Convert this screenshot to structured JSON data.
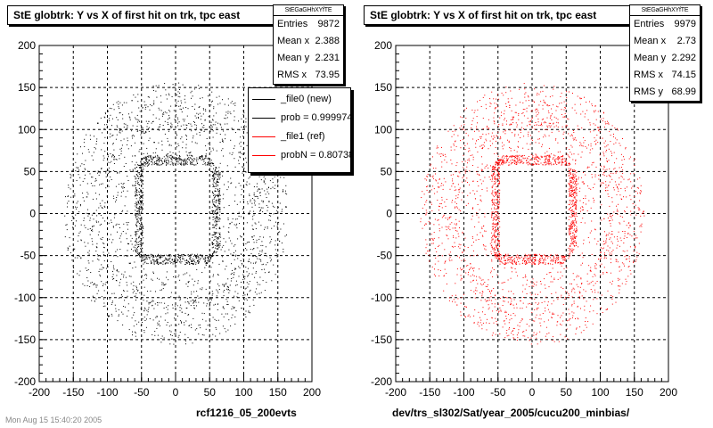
{
  "footer_note": "Mon Aug 15 15:40:20 2005",
  "chart_data": [
    {
      "type": "scatter",
      "title": "StE globtrk: Y vs X of first hit on trk, tpc east",
      "xlabel": "rcf1216_05_200evts",
      "ylabel": "",
      "xlim": [
        -200,
        200
      ],
      "ylim": [
        -200,
        200
      ],
      "xticks": [
        -200,
        -150,
        -100,
        -50,
        0,
        50,
        100,
        150,
        200
      ],
      "yticks": [
        -200,
        -150,
        -100,
        -50,
        0,
        50,
        100,
        150,
        200
      ],
      "grid": true,
      "marker_color": "#000000",
      "stats": {
        "header": "StEGaGHhXYfTE",
        "rows": [
          {
            "label": "Entries",
            "value": "9872"
          },
          {
            "label": "Mean x",
            "value": "2.388"
          },
          {
            "label": "Mean y",
            "value": "2.231"
          },
          {
            "label": "RMS x",
            "value": "73.95"
          }
        ]
      },
      "legend": {
        "placement": "top-right",
        "entries": [
          {
            "label": "_file0 (new)",
            "color": "#000000"
          },
          {
            "label": "prob = 0.999974",
            "color": "#000000"
          },
          {
            "label": "_file1 (ref)",
            "color": "#ff0000"
          },
          {
            "label": "probN = 0.80738",
            "color": "#ff0000"
          }
        ]
      },
      "series": [
        {
          "distribution": "inner ring: rectangular band x∈[-60,65], y∈[-60,70], thickness ≈ 12; outer ring ≈ radius 150",
          "entries": 9872
        }
      ]
    },
    {
      "type": "scatter",
      "title": "StE globtrk: Y vs X of first hit on trk, tpc east",
      "xlabel": "dev/trs_sl302/Sat/year_2005/cucu200_minbias/",
      "ylabel": "",
      "xlim": [
        -200,
        200
      ],
      "ylim": [
        -200,
        200
      ],
      "xticks": [
        -200,
        -150,
        -100,
        -50,
        0,
        50,
        100,
        150,
        200
      ],
      "yticks": [
        -200,
        -150,
        -100,
        -50,
        0,
        50,
        100,
        150,
        200
      ],
      "grid": true,
      "marker_color": "#ff0000",
      "stats": {
        "header": "StEGaGHhXYfTE",
        "rows": [
          {
            "label": "Entries",
            "value": "9979"
          },
          {
            "label": "Mean x",
            "value": "2.73"
          },
          {
            "label": "Mean y",
            "value": "2.292"
          },
          {
            "label": "RMS x",
            "value": "74.15"
          },
          {
            "label": "RMS y",
            "value": "68.99"
          }
        ]
      },
      "series": [
        {
          "distribution": "inner ring: rectangular band x∈[-60,65], y∈[-60,70], thickness ≈ 12; outer ring ≈ radius 150",
          "entries": 9979
        }
      ]
    }
  ]
}
